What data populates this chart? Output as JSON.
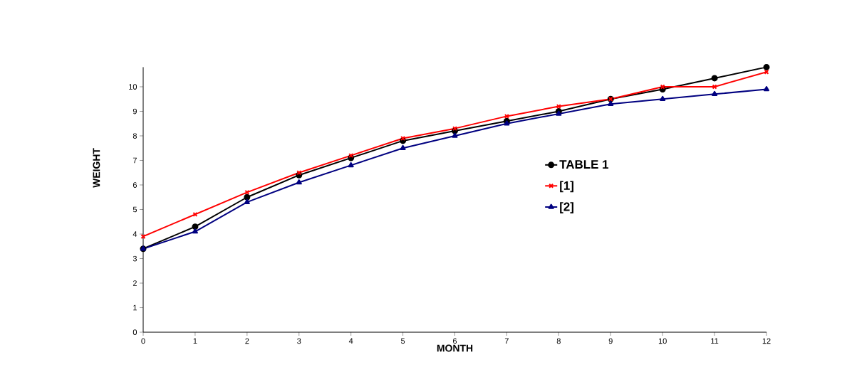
{
  "chart_data": {
    "type": "line",
    "xlabel": "MONTH",
    "ylabel": "WEIGHT",
    "x": [
      0,
      1,
      2,
      3,
      4,
      5,
      6,
      7,
      8,
      9,
      10,
      11,
      12
    ],
    "series": [
      {
        "name": "TABLE 1",
        "color": "#000000",
        "marker": "circle",
        "values": [
          3.4,
          4.3,
          5.5,
          6.4,
          7.1,
          7.8,
          8.2,
          8.6,
          9.0,
          9.5,
          9.9,
          10.35,
          10.8
        ]
      },
      {
        "name": "[1]",
        "color": "#ff0000",
        "marker": "cross",
        "values": [
          3.9,
          4.8,
          5.7,
          6.5,
          7.2,
          7.9,
          8.3,
          8.8,
          9.2,
          9.5,
          10.0,
          10.0,
          10.6
        ]
      },
      {
        "name": "[2]",
        "color": "#000080",
        "marker": "triangle",
        "values": [
          3.4,
          4.1,
          5.3,
          6.1,
          6.8,
          7.5,
          8.0,
          8.5,
          8.9,
          9.3,
          9.5,
          9.7,
          9.9
        ]
      }
    ],
    "xlim": [
      0,
      12
    ],
    "ylim": [
      0,
      10.8
    ],
    "xticks": [
      0,
      1,
      2,
      3,
      4,
      5,
      6,
      7,
      8,
      9,
      10,
      11,
      12
    ],
    "yticks": [
      0,
      1,
      2,
      3,
      4,
      5,
      6,
      7,
      8,
      9,
      10
    ],
    "grid": false,
    "legend": "right",
    "line_style": "solid"
  }
}
